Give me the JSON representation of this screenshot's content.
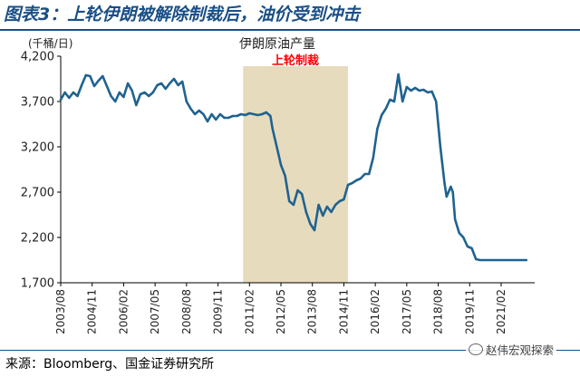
{
  "header": {
    "title": "图表3：上轮伊朗被解除制裁后，油价受到冲击"
  },
  "footer": {
    "source": "来源：Bloomberg、国金证券研究所"
  },
  "watermark": {
    "text": "赵伟宏观探索"
  },
  "colors": {
    "series": "#1f6390",
    "band": "#e7dbbd",
    "annotation": "#ff0000",
    "title": "#1a4f86"
  },
  "chart_data": {
    "type": "line",
    "title": "伊朗原油产量",
    "unit_label": "(千桶/日)",
    "annotation": "上轮制裁",
    "annotation_band": [
      "2010-11",
      "2015-01"
    ],
    "ylim": [
      1700,
      4200
    ],
    "yticks": [
      1700,
      2200,
      2700,
      3200,
      3700,
      4200
    ],
    "ytick_labels": [
      "1,700",
      "2,200",
      "2,700",
      "3,200",
      "3,700",
      "4,200"
    ],
    "xlim": [
      "2003-08",
      "2022-06"
    ],
    "xticks": [
      "2003/08",
      "2004/11",
      "2006/02",
      "2007/05",
      "2008/08",
      "2009/11",
      "2011/02",
      "2012/05",
      "2013/08",
      "2014/11",
      "2016/02",
      "2017/05",
      "2018/08",
      "2019/11",
      "2021/02"
    ],
    "series": [
      {
        "values": [
          [
            "2003-08",
            3720
          ],
          [
            "2003-10",
            3800
          ],
          [
            "2003-12",
            3740
          ],
          [
            "2004-02",
            3800
          ],
          [
            "2004-04",
            3760
          ],
          [
            "2004-06",
            3880
          ],
          [
            "2004-08",
            3990
          ],
          [
            "2004-10",
            3980
          ],
          [
            "2004-12",
            3870
          ],
          [
            "2005-02",
            3930
          ],
          [
            "2005-04",
            3980
          ],
          [
            "2005-06",
            3870
          ],
          [
            "2005-08",
            3760
          ],
          [
            "2005-10",
            3700
          ],
          [
            "2005-12",
            3800
          ],
          [
            "2006-02",
            3750
          ],
          [
            "2006-04",
            3900
          ],
          [
            "2006-06",
            3820
          ],
          [
            "2006-08",
            3660
          ],
          [
            "2006-10",
            3780
          ],
          [
            "2006-12",
            3800
          ],
          [
            "2007-02",
            3760
          ],
          [
            "2007-04",
            3800
          ],
          [
            "2007-06",
            3880
          ],
          [
            "2007-08",
            3900
          ],
          [
            "2007-10",
            3840
          ],
          [
            "2007-12",
            3900
          ],
          [
            "2008-02",
            3950
          ],
          [
            "2008-04",
            3880
          ],
          [
            "2008-06",
            3920
          ],
          [
            "2008-08",
            3700
          ],
          [
            "2008-10",
            3620
          ],
          [
            "2008-12",
            3560
          ],
          [
            "2009-02",
            3600
          ],
          [
            "2009-04",
            3560
          ],
          [
            "2009-06",
            3480
          ],
          [
            "2009-08",
            3560
          ],
          [
            "2009-10",
            3500
          ],
          [
            "2009-12",
            3560
          ],
          [
            "2010-02",
            3520
          ],
          [
            "2010-04",
            3520
          ],
          [
            "2010-06",
            3540
          ],
          [
            "2010-08",
            3540
          ],
          [
            "2010-10",
            3560
          ],
          [
            "2010-12",
            3550
          ],
          [
            "2011-02",
            3570
          ],
          [
            "2011-04",
            3560
          ],
          [
            "2011-06",
            3550
          ],
          [
            "2011-08",
            3560
          ],
          [
            "2011-10",
            3580
          ],
          [
            "2011-12",
            3540
          ],
          [
            "2012-01",
            3400
          ],
          [
            "2012-03",
            3200
          ],
          [
            "2012-05",
            3000
          ],
          [
            "2012-07",
            2880
          ],
          [
            "2012-09",
            2600
          ],
          [
            "2012-11",
            2560
          ],
          [
            "2013-01",
            2720
          ],
          [
            "2013-03",
            2680
          ],
          [
            "2013-05",
            2480
          ],
          [
            "2013-07",
            2350
          ],
          [
            "2013-09",
            2280
          ],
          [
            "2013-11",
            2560
          ],
          [
            "2014-01",
            2440
          ],
          [
            "2014-03",
            2540
          ],
          [
            "2014-05",
            2480
          ],
          [
            "2014-07",
            2560
          ],
          [
            "2014-09",
            2600
          ],
          [
            "2014-11",
            2620
          ],
          [
            "2015-01",
            2780
          ],
          [
            "2015-03",
            2800
          ],
          [
            "2015-05",
            2830
          ],
          [
            "2015-07",
            2850
          ],
          [
            "2015-09",
            2900
          ],
          [
            "2015-11",
            2900
          ],
          [
            "2016-01",
            3080
          ],
          [
            "2016-03",
            3400
          ],
          [
            "2016-05",
            3550
          ],
          [
            "2016-07",
            3620
          ],
          [
            "2016-09",
            3720
          ],
          [
            "2016-11",
            3700
          ],
          [
            "2017-01",
            4000
          ],
          [
            "2017-03",
            3700
          ],
          [
            "2017-05",
            3860
          ],
          [
            "2017-07",
            3820
          ],
          [
            "2017-09",
            3850
          ],
          [
            "2017-11",
            3820
          ],
          [
            "2018-01",
            3830
          ],
          [
            "2018-03",
            3800
          ],
          [
            "2018-05",
            3810
          ],
          [
            "2018-07",
            3700
          ],
          [
            "2018-09",
            3200
          ],
          [
            "2018-11",
            2800
          ],
          [
            "2018-12",
            2650
          ],
          [
            "2019-02",
            2760
          ],
          [
            "2019-03",
            2700
          ],
          [
            "2019-04",
            2400
          ],
          [
            "2019-06",
            2250
          ],
          [
            "2019-08",
            2200
          ],
          [
            "2019-10",
            2100
          ],
          [
            "2019-12",
            2080
          ],
          [
            "2020-02",
            1960
          ],
          [
            "2020-04",
            1950
          ],
          [
            "2020-08",
            1950
          ],
          [
            "2021-02",
            1950
          ],
          [
            "2021-08",
            1950
          ],
          [
            "2022-02",
            1950
          ]
        ]
      }
    ]
  }
}
